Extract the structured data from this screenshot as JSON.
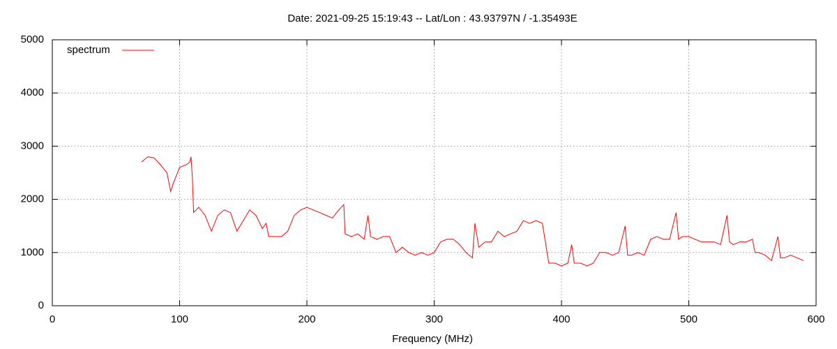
{
  "chart_data": {
    "type": "line",
    "title": "Date: 2021-09-25 15:19:43  --  Lat/Lon : 43.93797N / -1.35493E",
    "x_label": "Frequency (MHz)",
    "xlim": [
      0,
      600
    ],
    "xticks": [
      0,
      100,
      200,
      300,
      400,
      500,
      600
    ],
    "ylim": [
      0,
      5000
    ],
    "yticks": [
      0,
      1000,
      2000,
      3000,
      4000,
      5000
    ],
    "grid": true,
    "legend": "upper left",
    "x": [
      70,
      75,
      80,
      85,
      90,
      93,
      95,
      100,
      105,
      108,
      109,
      110,
      111,
      115,
      120,
      125,
      130,
      135,
      140,
      145,
      150,
      155,
      160,
      165,
      168,
      170,
      175,
      180,
      185,
      190,
      195,
      200,
      205,
      210,
      215,
      220,
      225,
      229,
      230,
      235,
      240,
      245,
      248,
      250,
      255,
      260,
      265,
      270,
      275,
      280,
      285,
      290,
      295,
      300,
      305,
      310,
      315,
      320,
      325,
      330,
      332,
      335,
      340,
      345,
      350,
      355,
      360,
      365,
      370,
      375,
      380,
      385,
      390,
      395,
      400,
      405,
      408,
      410,
      415,
      420,
      425,
      430,
      435,
      440,
      445,
      450,
      452,
      455,
      460,
      465,
      470,
      475,
      480,
      485,
      490,
      492,
      495,
      500,
      505,
      510,
      515,
      520,
      525,
      530,
      532,
      535,
      540,
      545,
      550,
      552,
      555,
      560,
      565,
      570,
      572,
      575,
      580,
      585,
      590
    ],
    "series": [
      {
        "name": "spectrum",
        "color": "#ff0000",
        "values": [
          2700,
          2800,
          2780,
          2650,
          2500,
          2150,
          2300,
          2600,
          2650,
          2700,
          2800,
          2400,
          1750,
          1850,
          1700,
          1400,
          1700,
          1800,
          1750,
          1400,
          1600,
          1800,
          1700,
          1450,
          1550,
          1300,
          1300,
          1300,
          1400,
          1700,
          1800,
          1850,
          1800,
          1750,
          1700,
          1650,
          1800,
          1900,
          1350,
          1300,
          1350,
          1250,
          1700,
          1300,
          1250,
          1300,
          1300,
          1000,
          1100,
          1000,
          950,
          1000,
          950,
          1000,
          1200,
          1250,
          1250,
          1150,
          1000,
          900,
          1550,
          1100,
          1200,
          1200,
          1400,
          1300,
          1350,
          1400,
          1600,
          1550,
          1600,
          1550,
          800,
          800,
          750,
          800,
          1150,
          800,
          800,
          750,
          800,
          1000,
          1000,
          950,
          1000,
          1500,
          950,
          950,
          1000,
          950,
          1250,
          1300,
          1250,
          1250,
          1750,
          1250,
          1300,
          1300,
          1250,
          1200,
          1200,
          1200,
          1150,
          1700,
          1200,
          1150,
          1200,
          1200,
          1250,
          1000,
          1000,
          950,
          850,
          1300,
          900,
          900,
          950,
          900,
          850
        ]
      }
    ]
  }
}
